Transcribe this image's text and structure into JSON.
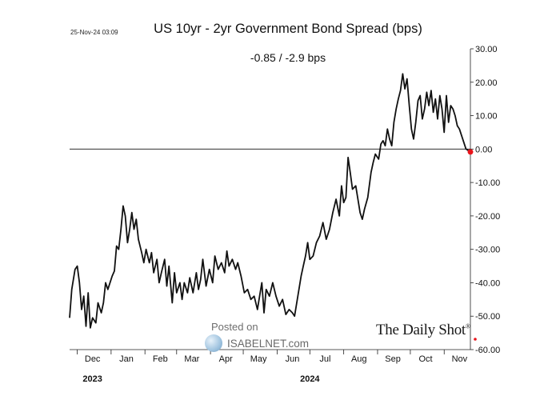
{
  "chart_data": {
    "type": "line",
    "title": "US 10yr - 2yr Government Bond Spread (bps)",
    "subtitle": "-0.85  /  -2.9 bps",
    "timestamp": "25-Nov-24 03:09",
    "y_axis": {
      "position": "right",
      "ylim": [
        -60,
        30
      ],
      "ticks": [
        "30.00",
        "20.00",
        "10.00",
        "0.00",
        "-10.00",
        "-20.00",
        "-30.00",
        "-40.00",
        "-50.00",
        "-60.00"
      ],
      "tick_values": [
        30,
        20,
        10,
        0,
        -10,
        -20,
        -30,
        -40,
        -50,
        -60
      ]
    },
    "x_axis": {
      "months": [
        "Dec",
        "Jan",
        "Feb",
        "Mar",
        "Apr",
        "May",
        "Jun",
        "Jul",
        "Aug",
        "Sep",
        "Oct",
        "Nov"
      ],
      "years": [
        "2023",
        "2024"
      ],
      "xlim": [
        "2023-11-24",
        "2024-11-25"
      ]
    },
    "reference_line": 0,
    "last_point_color": "#e8141b",
    "line_color": "#111111",
    "grid": false,
    "series": [
      {
        "points": [
          [
            "2023-11-24",
            -50.5
          ],
          [
            "2023-11-26",
            -42
          ],
          [
            "2023-11-29",
            -36
          ],
          [
            "2023-12-01",
            -35
          ],
          [
            "2023-12-03",
            -40
          ],
          [
            "2023-12-05",
            -48
          ],
          [
            "2023-12-07",
            -44
          ],
          [
            "2023-12-09",
            -53
          ],
          [
            "2023-12-11",
            -43
          ],
          [
            "2023-12-13",
            -53.5
          ],
          [
            "2023-12-15",
            -50.5
          ],
          [
            "2023-12-18",
            -52
          ],
          [
            "2023-12-20",
            -46
          ],
          [
            "2023-12-23",
            -49
          ],
          [
            "2023-12-25",
            -46
          ],
          [
            "2023-12-27",
            -40
          ],
          [
            "2023-12-29",
            -42
          ],
          [
            "2024-01-02",
            -38
          ],
          [
            "2024-01-04",
            -36.5
          ],
          [
            "2024-01-06",
            -29
          ],
          [
            "2024-01-08",
            -30
          ],
          [
            "2024-01-10",
            -24
          ],
          [
            "2024-01-12",
            -17
          ],
          [
            "2024-01-14",
            -20
          ],
          [
            "2024-01-16",
            -28
          ],
          [
            "2024-01-18",
            -24
          ],
          [
            "2024-01-20",
            -19
          ],
          [
            "2024-01-22",
            -24
          ],
          [
            "2024-01-24",
            -21
          ],
          [
            "2024-01-26",
            -27
          ],
          [
            "2024-01-29",
            -31
          ],
          [
            "2024-01-31",
            -34
          ],
          [
            "2024-02-02",
            -30
          ],
          [
            "2024-02-05",
            -34
          ],
          [
            "2024-02-07",
            -31
          ],
          [
            "2024-02-09",
            -37
          ],
          [
            "2024-02-12",
            -33
          ],
          [
            "2024-02-14",
            -40
          ],
          [
            "2024-02-16",
            -37
          ],
          [
            "2024-02-19",
            -33
          ],
          [
            "2024-02-21",
            -41
          ],
          [
            "2024-02-23",
            -35
          ],
          [
            "2024-02-26",
            -46
          ],
          [
            "2024-02-28",
            -37
          ],
          [
            "2024-03-01",
            -43
          ],
          [
            "2024-03-04",
            -40
          ],
          [
            "2024-03-06",
            -45
          ],
          [
            "2024-03-08",
            -40
          ],
          [
            "2024-03-11",
            -43
          ],
          [
            "2024-03-13",
            -38.5
          ],
          [
            "2024-03-16",
            -43
          ],
          [
            "2024-03-19",
            -37
          ],
          [
            "2024-03-21",
            -42
          ],
          [
            "2024-03-23",
            -39
          ],
          [
            "2024-03-25",
            -33
          ],
          [
            "2024-03-28",
            -41
          ],
          [
            "2024-03-31",
            -36
          ],
          [
            "2024-04-03",
            -40
          ],
          [
            "2024-04-05",
            -32
          ],
          [
            "2024-04-08",
            -36
          ],
          [
            "2024-04-11",
            -34
          ],
          [
            "2024-04-14",
            -37
          ],
          [
            "2024-04-16",
            -30.5
          ],
          [
            "2024-04-18",
            -35
          ],
          [
            "2024-04-21",
            -33
          ],
          [
            "2024-04-24",
            -36
          ],
          [
            "2024-04-26",
            -34
          ],
          [
            "2024-04-29",
            -38
          ],
          [
            "2024-05-02",
            -43
          ],
          [
            "2024-05-05",
            -42
          ],
          [
            "2024-05-08",
            -45
          ],
          [
            "2024-05-11",
            -44
          ],
          [
            "2024-05-14",
            -48
          ],
          [
            "2024-05-16",
            -44
          ],
          [
            "2024-05-18",
            -40
          ],
          [
            "2024-05-20",
            -49
          ],
          [
            "2024-05-22",
            -42
          ],
          [
            "2024-05-25",
            -44
          ],
          [
            "2024-05-28",
            -40
          ],
          [
            "2024-05-31",
            -44
          ],
          [
            "2024-06-03",
            -47
          ],
          [
            "2024-06-06",
            -45
          ],
          [
            "2024-06-09",
            -49.5
          ],
          [
            "2024-06-12",
            -48
          ],
          [
            "2024-06-15",
            -49
          ],
          [
            "2024-06-17",
            -50
          ],
          [
            "2024-06-20",
            -44
          ],
          [
            "2024-06-23",
            -38
          ],
          [
            "2024-06-25",
            -35
          ],
          [
            "2024-06-27",
            -32
          ],
          [
            "2024-06-29",
            -28
          ],
          [
            "2024-07-01",
            -33
          ],
          [
            "2024-07-04",
            -32
          ],
          [
            "2024-07-07",
            -28
          ],
          [
            "2024-07-10",
            -26
          ],
          [
            "2024-07-13",
            -22
          ],
          [
            "2024-07-16",
            -27
          ],
          [
            "2024-07-19",
            -24
          ],
          [
            "2024-07-22",
            -19
          ],
          [
            "2024-07-25",
            -15
          ],
          [
            "2024-07-28",
            -20
          ],
          [
            "2024-07-30",
            -11
          ],
          [
            "2024-08-01",
            -16
          ],
          [
            "2024-08-03",
            -14.5
          ],
          [
            "2024-08-05",
            -2.5
          ],
          [
            "2024-08-07",
            -7
          ],
          [
            "2024-08-09",
            -12
          ],
          [
            "2024-08-12",
            -11
          ],
          [
            "2024-08-14",
            -15
          ],
          [
            "2024-08-16",
            -19
          ],
          [
            "2024-08-18",
            -21
          ],
          [
            "2024-08-20",
            -18
          ],
          [
            "2024-08-23",
            -14.5
          ],
          [
            "2024-08-26",
            -7
          ],
          [
            "2024-08-28",
            -4
          ],
          [
            "2024-08-30",
            -1.5
          ],
          [
            "2024-09-02",
            -3
          ],
          [
            "2024-09-04",
            1.5
          ],
          [
            "2024-09-06",
            2.5
          ],
          [
            "2024-09-08",
            1
          ],
          [
            "2024-09-10",
            6
          ],
          [
            "2024-09-12",
            3
          ],
          [
            "2024-09-14",
            1
          ],
          [
            "2024-09-16",
            8
          ],
          [
            "2024-09-18",
            12
          ],
          [
            "2024-09-20",
            15
          ],
          [
            "2024-09-22",
            17.5
          ],
          [
            "2024-09-24",
            22.5
          ],
          [
            "2024-09-26",
            18
          ],
          [
            "2024-09-28",
            21
          ],
          [
            "2024-09-30",
            13
          ],
          [
            "2024-10-02",
            6
          ],
          [
            "2024-10-04",
            3
          ],
          [
            "2024-10-06",
            8
          ],
          [
            "2024-10-08",
            14.5
          ],
          [
            "2024-10-10",
            16
          ],
          [
            "2024-10-12",
            9
          ],
          [
            "2024-10-14",
            12
          ],
          [
            "2024-10-16",
            17
          ],
          [
            "2024-10-18",
            13
          ],
          [
            "2024-10-20",
            17.5
          ],
          [
            "2024-10-22",
            11
          ],
          [
            "2024-10-24",
            15
          ],
          [
            "2024-10-26",
            9
          ],
          [
            "2024-10-28",
            16
          ],
          [
            "2024-10-30",
            12
          ],
          [
            "2024-11-01",
            5
          ],
          [
            "2024-11-03",
            16
          ],
          [
            "2024-11-05",
            8
          ],
          [
            "2024-11-07",
            13
          ],
          [
            "2024-11-09",
            12
          ],
          [
            "2024-11-11",
            10
          ],
          [
            "2024-11-13",
            7
          ],
          [
            "2024-11-15",
            6
          ],
          [
            "2024-11-18",
            3
          ],
          [
            "2024-11-21",
            0
          ],
          [
            "2024-11-25",
            -0.85
          ]
        ]
      }
    ]
  },
  "watermark": {
    "posted": "Posted on",
    "site": "ISABELNET.com",
    "brand": "The Daily Shot",
    "brand_mark": "®"
  }
}
